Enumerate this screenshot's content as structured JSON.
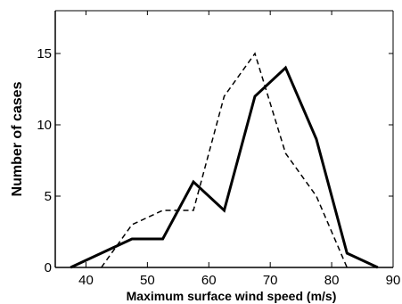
{
  "chart_data": {
    "type": "line",
    "xlabel": "Maximum surface wind speed (m/s)",
    "ylabel": "Number of cases",
    "xlim": [
      35,
      90
    ],
    "ylim": [
      0,
      18
    ],
    "x_ticks": [
      40,
      50,
      60,
      70,
      80,
      90
    ],
    "y_ticks": [
      0,
      5,
      10,
      15
    ],
    "grid": false,
    "legend": "none",
    "series": [
      {
        "style": "solid",
        "color": "#000000",
        "x": [
          37.5,
          47.5,
          52.5,
          57.5,
          62.5,
          67.5,
          72.5,
          77.5,
          82.5,
          87.5
        ],
        "y": [
          0,
          2,
          2,
          6,
          4,
          12,
          14,
          9,
          1,
          0
        ]
      },
      {
        "style": "dashed",
        "color": "#000000",
        "x": [
          42.5,
          47.5,
          52.5,
          57.5,
          62.5,
          67.5,
          72.5,
          77.5,
          82.5
        ],
        "y": [
          0,
          3,
          4,
          4,
          12,
          15,
          8,
          5,
          0
        ]
      }
    ]
  }
}
